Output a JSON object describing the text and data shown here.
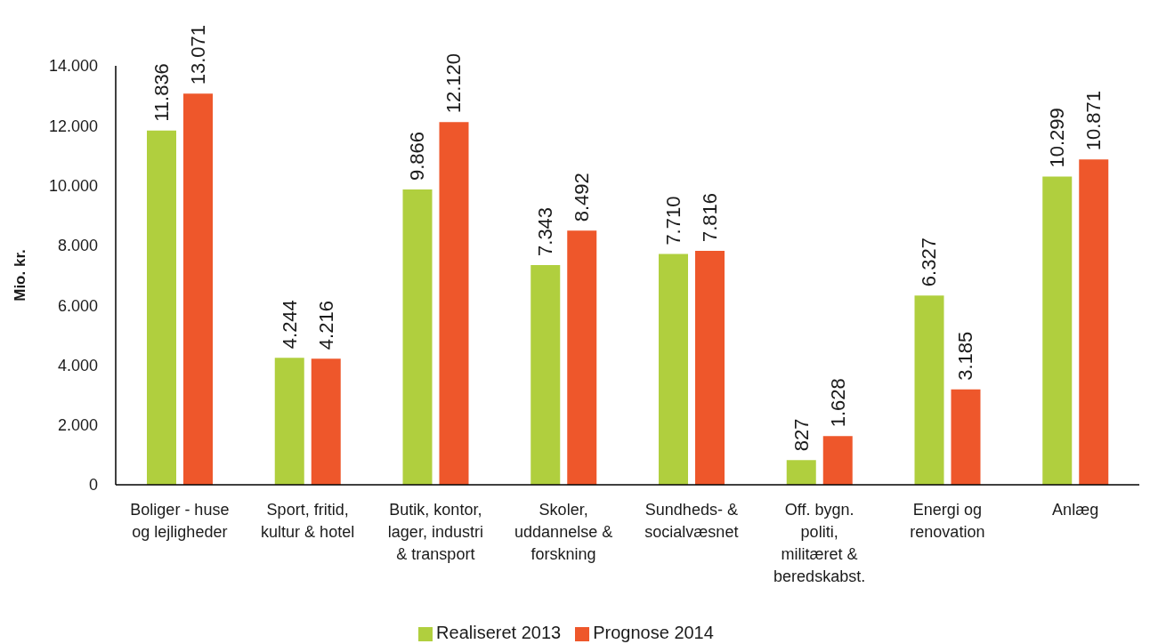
{
  "chart_data": {
    "type": "bar",
    "ylabel": "Mio. kr.",
    "categories": [
      "Boliger - huse og lejligheder",
      "Sport, fritid, kultur & hotel",
      "Butik, kontor, lager, industri & transport",
      "Skoler, uddannelse & forskning",
      "Sundheds- & socialvæsnet",
      "Off. bygn. politi, militæret & beredskabst.",
      "Energi og renovation",
      "Anlæg"
    ],
    "series": [
      {
        "name": "Realiseret 2013",
        "color": "#b0cf3e",
        "values": [
          11836,
          4244,
          9866,
          7343,
          7710,
          827,
          6327,
          10299
        ],
        "value_labels": [
          "11.836",
          "4.244",
          "9.866",
          "7.343",
          "7.710",
          "827",
          "6.327",
          "10.299"
        ]
      },
      {
        "name": "Prognose 2014",
        "color": "#ee572b",
        "values": [
          13071,
          4216,
          12120,
          8492,
          7816,
          1628,
          3185,
          10871
        ],
        "value_labels": [
          "13.071",
          "4.216",
          "12.120",
          "8.492",
          "7.816",
          "1.628",
          "3.185",
          "10.871"
        ]
      }
    ],
    "ylim": [
      0,
      14000
    ],
    "yticks": [
      {
        "value": 0,
        "label": "0"
      },
      {
        "value": 2000,
        "label": "2.000"
      },
      {
        "value": 4000,
        "label": "4.000"
      },
      {
        "value": 6000,
        "label": "6.000"
      },
      {
        "value": 8000,
        "label": "8.000"
      },
      {
        "value": 10000,
        "label": "10.000"
      },
      {
        "value": 12000,
        "label": "12.000"
      },
      {
        "value": 14000,
        "label": "14.000"
      }
    ],
    "grid": false,
    "legend": "bottom"
  }
}
